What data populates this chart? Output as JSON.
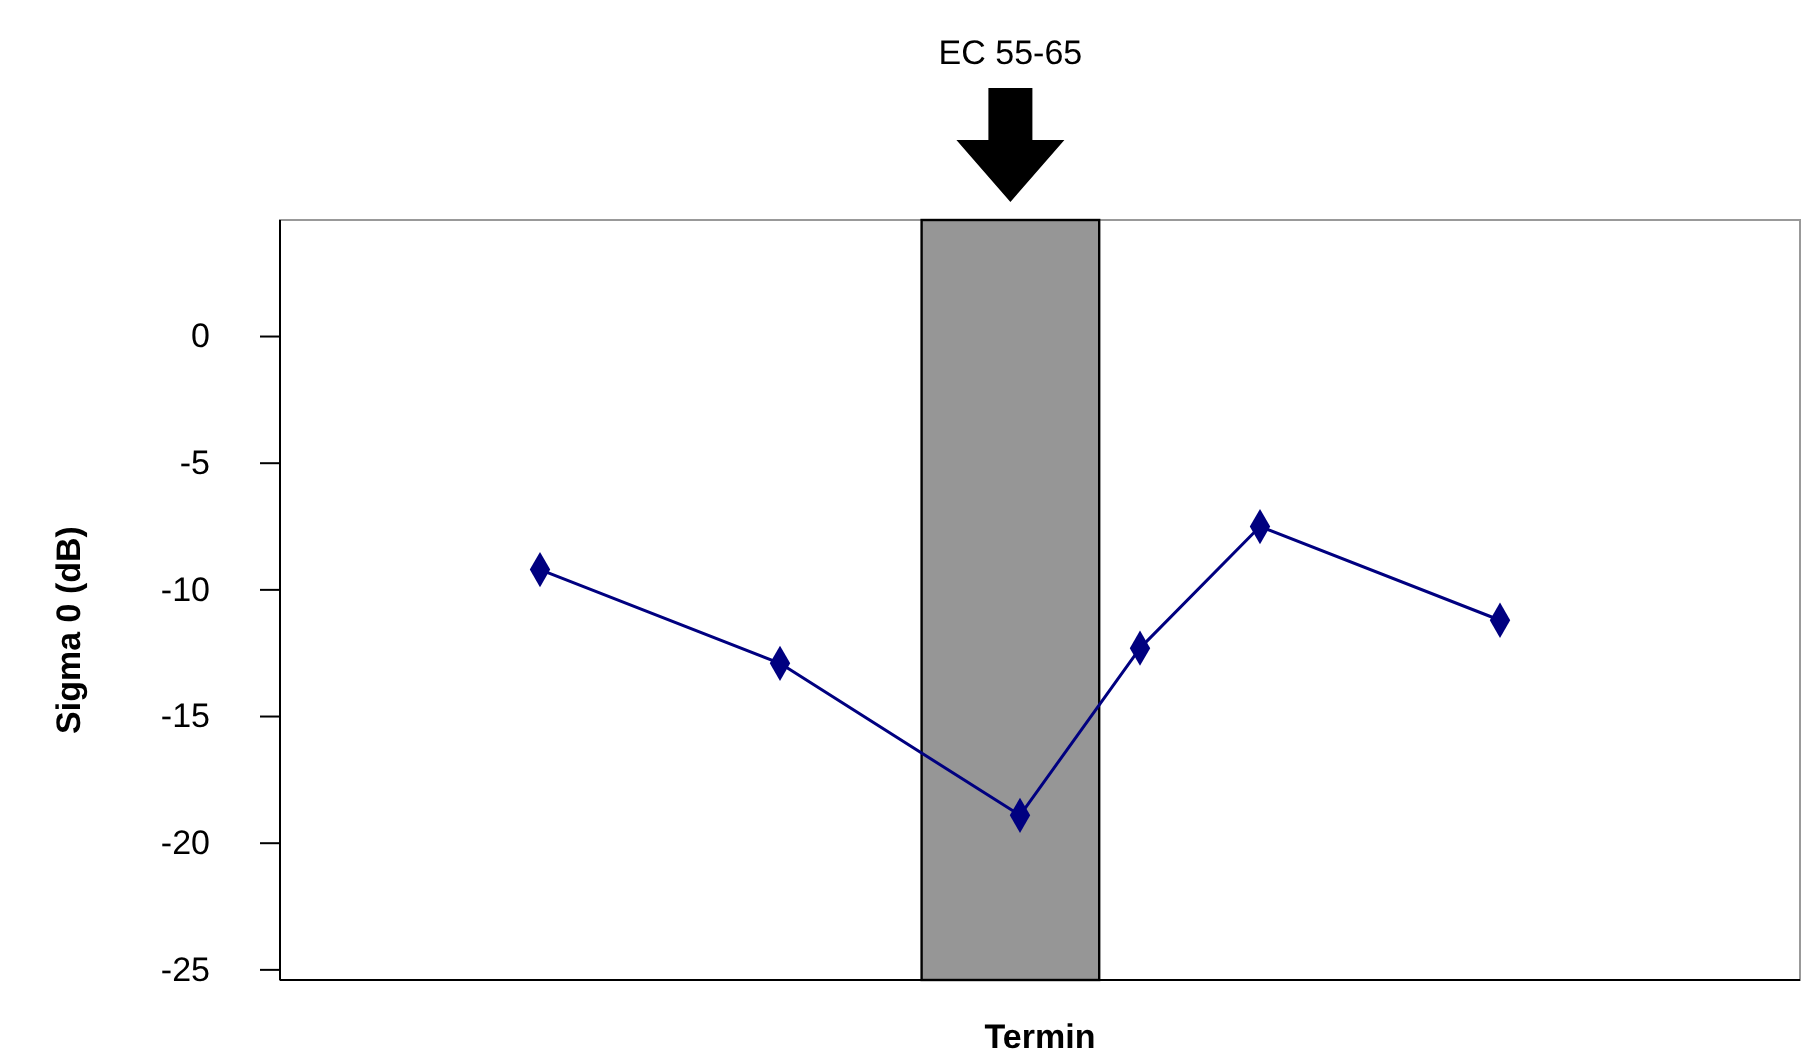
{
  "chart_data": {
    "type": "line",
    "xlabel": "Termin",
    "ylabel": "Sigma 0 (dB)",
    "categories": [
      null,
      null,
      null,
      null,
      null,
      null,
      null,
      null,
      null
    ],
    "series": [
      {
        "color": "#000080",
        "values": [
          -9.2,
          null,
          -12.9,
          null,
          -18.9,
          -12.3,
          -7.5,
          null,
          -11.2
        ]
      }
    ],
    "ylim": [
      -25.4,
      4.6
    ],
    "yticks": [
      -25,
      -20,
      -15,
      -10,
      -5,
      0
    ],
    "marker": "diamond",
    "line_style": "solid",
    "grid": false,
    "annotations": [
      "EC 55-65"
    ]
  }
}
